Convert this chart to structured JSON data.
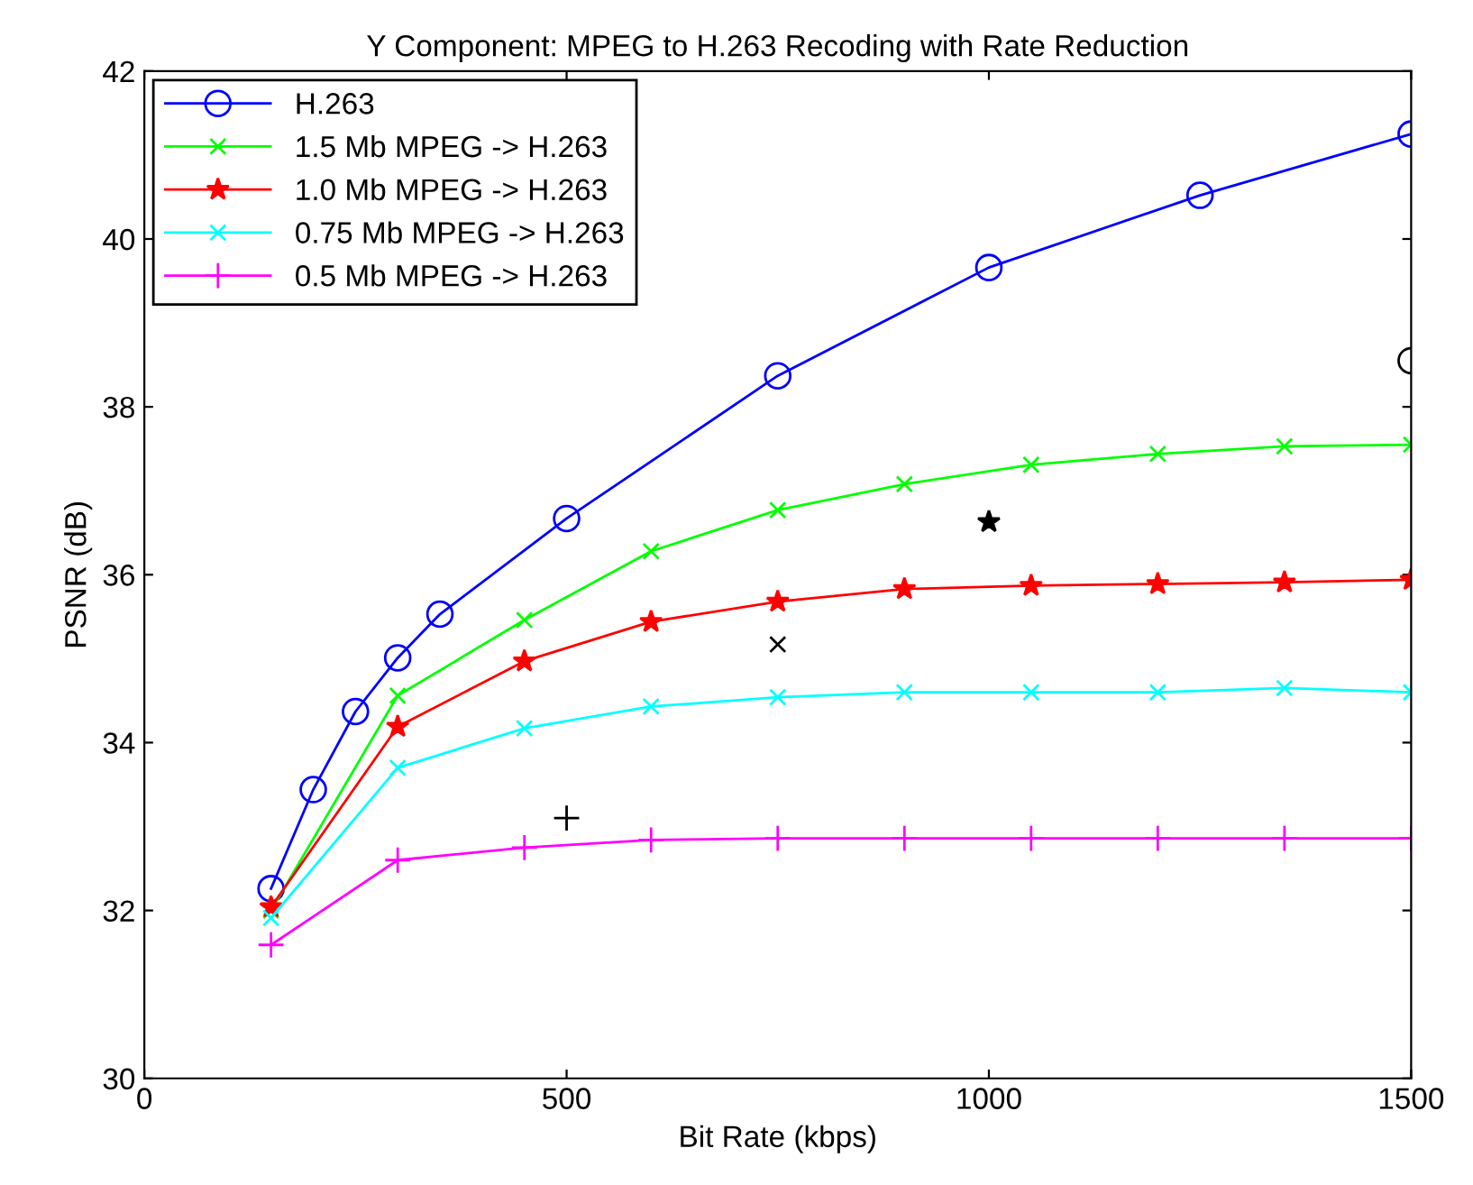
{
  "chart_data": {
    "type": "line",
    "title": "Y Component: MPEG to H.263 Recoding with Rate Reduction",
    "xlabel": "Bit Rate (kbps)",
    "ylabel": "PSNR (dB)",
    "xlim": [
      0,
      1500
    ],
    "xticks": [
      0,
      500,
      1000,
      1500
    ],
    "ylim": [
      30,
      42
    ],
    "yticks": [
      30,
      32,
      34,
      36,
      38,
      40,
      42
    ],
    "grid": false,
    "legend": "top left",
    "series": [
      {
        "name": "H.263",
        "color": "#0000ff",
        "marker": "circle",
        "x": [
          150,
          200,
          250,
          300,
          350,
          500,
          750,
          1000,
          1250,
          1500
        ],
        "values": [
          32.26,
          33.44,
          34.37,
          35.01,
          35.53,
          36.67,
          38.37,
          39.66,
          40.52,
          41.25
        ]
      },
      {
        "name": "1.5 Mb MPEG -> H.263",
        "color": "#00ff00",
        "marker": "cross",
        "x": [
          150,
          300,
          450,
          600,
          750,
          900,
          1050,
          1200,
          1350,
          1500
        ],
        "values": [
          32.0,
          34.56,
          35.46,
          36.28,
          36.77,
          37.08,
          37.31,
          37.44,
          37.53,
          37.55
        ]
      },
      {
        "name": "1.0 Mb MPEG -> H.263",
        "color": "#ff0000",
        "marker": "star",
        "x": [
          150,
          300,
          450,
          600,
          750,
          900,
          1050,
          1200,
          1350,
          1500
        ],
        "values": [
          32.04,
          34.19,
          34.97,
          35.44,
          35.68,
          35.83,
          35.87,
          35.89,
          35.91,
          35.94
        ]
      },
      {
        "name": "0.75 Mb MPEG -> H.263",
        "color": "#00ffff",
        "marker": "cross",
        "x": [
          150,
          300,
          450,
          600,
          750,
          900,
          1050,
          1200,
          1350,
          1500
        ],
        "values": [
          31.91,
          33.7,
          34.17,
          34.43,
          34.54,
          34.6,
          34.6,
          34.6,
          34.65,
          34.6
        ]
      },
      {
        "name": "0.5 Mb MPEG -> H.263",
        "color": "#ff00ff",
        "marker": "plus",
        "x": [
          150,
          300,
          450,
          600,
          750,
          900,
          1050,
          1200,
          1350,
          1500
        ],
        "values": [
          31.59,
          32.6,
          32.75,
          32.84,
          32.86,
          32.86,
          32.86,
          32.86,
          32.86,
          32.86
        ]
      },
      {
        "type": "scatter",
        "color": "#000000",
        "marker": "circle",
        "x": [
          1500
        ],
        "values": [
          38.55
        ]
      },
      {
        "type": "scatter",
        "color": "#000000",
        "marker": "star",
        "x": [
          1000
        ],
        "values": [
          36.63
        ]
      },
      {
        "type": "scatter",
        "color": "#000000",
        "marker": "cross",
        "x": [
          750
        ],
        "values": [
          35.17
        ]
      },
      {
        "type": "scatter",
        "color": "#000000",
        "marker": "plus",
        "x": [
          500
        ],
        "values": [
          33.1
        ]
      }
    ]
  }
}
